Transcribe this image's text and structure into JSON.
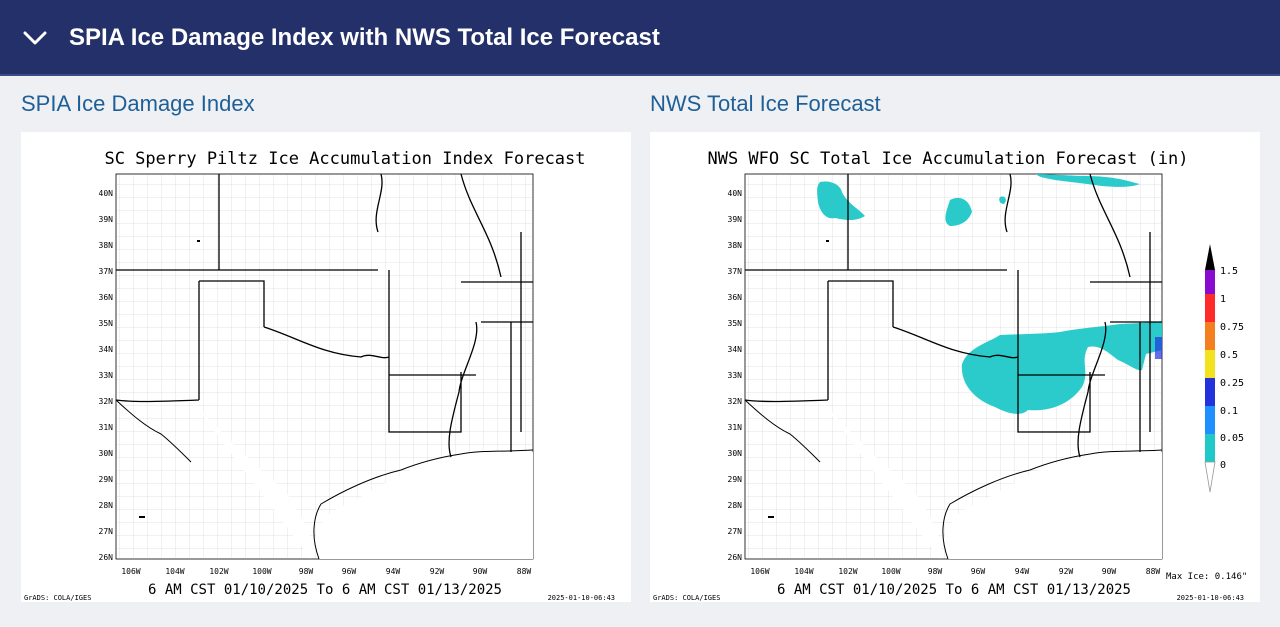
{
  "header": {
    "title": "SPIA Ice Damage Index with NWS Total Ice Forecast",
    "collapse_icon": "chevron-down-icon"
  },
  "left": {
    "section_title": "SPIA Ice Damage Index",
    "map_title": "SC Sperry Piltz Ice Accumulation Index Forecast",
    "valid_period": "6 AM CST 01/10/2025 To 6 AM CST 01/13/2025",
    "credit": "GrADS: COLA/IGES",
    "timestamp": "2025-01-10-06:43"
  },
  "right": {
    "section_title": "NWS Total Ice Forecast",
    "map_title": "NWS WFO SC Total Ice Accumulation Forecast (in)",
    "valid_period": "6 AM CST 01/10/2025 To 6 AM CST 01/13/2025",
    "credit": "GrADS: COLA/IGES",
    "timestamp": "2025-01-10-06:43",
    "max_ice": "Max Ice: 0.146\"",
    "legend": {
      "labels": [
        "1.5",
        "1",
        "0.75",
        "0.5",
        "0.25",
        "0.1",
        "0.05",
        "0"
      ],
      "colors": [
        "#8a0bd0",
        "#ff2a2a",
        "#f57e1f",
        "#f2e21e",
        "#2233dd",
        "#1e90ff",
        "#20c8c8"
      ]
    }
  },
  "axes": {
    "lat_labels": [
      "40N",
      "39N",
      "38N",
      "37N",
      "36N",
      "35N",
      "34N",
      "33N",
      "32N",
      "31N",
      "30N",
      "29N",
      "28N",
      "27N",
      "26N"
    ],
    "lon_labels": [
      "106W",
      "104W",
      "102W",
      "100W",
      "98W",
      "96W",
      "94W",
      "92W",
      "90W",
      "88W"
    ]
  },
  "colors": {
    "header_bg": "#233069",
    "section_title": "#1f5f97",
    "ice_fill": "#20c8c8"
  }
}
